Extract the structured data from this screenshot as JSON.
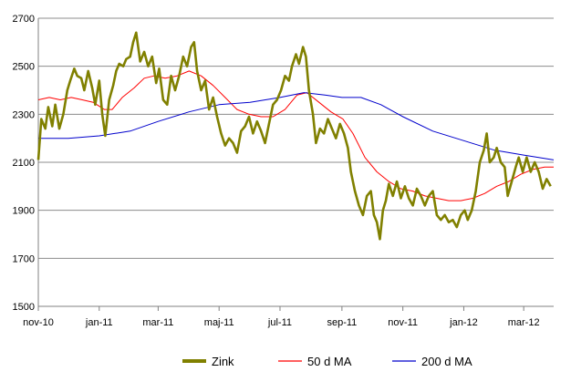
{
  "chart_data": {
    "type": "line",
    "title": "",
    "xlabel": "",
    "ylabel": "",
    "ylim": [
      1500,
      2700
    ],
    "yticks": [
      "1500",
      "1700",
      "1900",
      "2100",
      "2300",
      "2500",
      "2700"
    ],
    "xlim": [
      "2010-11-01",
      "2012-03-31"
    ],
    "xticks": [
      {
        "date": "2010-11-01",
        "label": "nov-10"
      },
      {
        "date": "2011-01-01",
        "label": "jan-11"
      },
      {
        "date": "2011-03-01",
        "label": "mar-11"
      },
      {
        "date": "2011-05-01",
        "label": "maj-11"
      },
      {
        "date": "2011-07-01",
        "label": "jul-11"
      },
      {
        "date": "2011-09-01",
        "label": "sep-11"
      },
      {
        "date": "2011-11-01",
        "label": "nov-11"
      },
      {
        "date": "2012-01-01",
        "label": "jan-12"
      },
      {
        "date": "2012-03-01",
        "label": "mar-12"
      }
    ],
    "grid": true,
    "legend_position": "bottom",
    "series": [
      {
        "name": "Zink",
        "color": "#808000",
        "points": [
          [
            "2010-11-01",
            2110
          ],
          [
            "2010-11-04",
            2280
          ],
          [
            "2010-11-08",
            2240
          ],
          [
            "2010-11-11",
            2330
          ],
          [
            "2010-11-15",
            2250
          ],
          [
            "2010-11-18",
            2340
          ],
          [
            "2010-11-22",
            2240
          ],
          [
            "2010-11-26",
            2300
          ],
          [
            "2010-11-30",
            2400
          ],
          [
            "2010-12-03",
            2440
          ],
          [
            "2010-12-07",
            2490
          ],
          [
            "2010-12-10",
            2460
          ],
          [
            "2010-12-14",
            2450
          ],
          [
            "2010-12-17",
            2400
          ],
          [
            "2010-12-21",
            2480
          ],
          [
            "2010-12-25",
            2410
          ],
          [
            "2010-12-28",
            2340
          ],
          [
            "2011-01-01",
            2440
          ],
          [
            "2011-01-04",
            2300
          ],
          [
            "2011-01-07",
            2210
          ],
          [
            "2011-01-11",
            2360
          ],
          [
            "2011-01-15",
            2420
          ],
          [
            "2011-01-18",
            2480
          ],
          [
            "2011-01-21",
            2510
          ],
          [
            "2011-01-25",
            2500
          ],
          [
            "2011-01-28",
            2530
          ],
          [
            "2011-02-01",
            2540
          ],
          [
            "2011-02-04",
            2600
          ],
          [
            "2011-02-07",
            2640
          ],
          [
            "2011-02-11",
            2520
          ],
          [
            "2011-02-15",
            2560
          ],
          [
            "2011-02-19",
            2500
          ],
          [
            "2011-02-23",
            2540
          ],
          [
            "2011-02-27",
            2430
          ],
          [
            "2011-03-02",
            2490
          ],
          [
            "2011-03-06",
            2360
          ],
          [
            "2011-03-10",
            2340
          ],
          [
            "2011-03-14",
            2460
          ],
          [
            "2011-03-18",
            2400
          ],
          [
            "2011-03-22",
            2460
          ],
          [
            "2011-03-26",
            2540
          ],
          [
            "2011-03-30",
            2500
          ],
          [
            "2011-04-03",
            2580
          ],
          [
            "2011-04-06",
            2600
          ],
          [
            "2011-04-09",
            2480
          ],
          [
            "2011-04-13",
            2400
          ],
          [
            "2011-04-17",
            2440
          ],
          [
            "2011-04-21",
            2320
          ],
          [
            "2011-04-25",
            2370
          ],
          [
            "2011-04-29",
            2290
          ],
          [
            "2011-05-03",
            2220
          ],
          [
            "2011-05-07",
            2170
          ],
          [
            "2011-05-11",
            2200
          ],
          [
            "2011-05-15",
            2180
          ],
          [
            "2011-05-19",
            2140
          ],
          [
            "2011-05-23",
            2230
          ],
          [
            "2011-05-27",
            2250
          ],
          [
            "2011-05-31",
            2290
          ],
          [
            "2011-06-04",
            2220
          ],
          [
            "2011-06-08",
            2270
          ],
          [
            "2011-06-12",
            2230
          ],
          [
            "2011-06-16",
            2180
          ],
          [
            "2011-06-20",
            2260
          ],
          [
            "2011-06-24",
            2340
          ],
          [
            "2011-06-28",
            2360
          ],
          [
            "2011-07-02",
            2400
          ],
          [
            "2011-07-06",
            2460
          ],
          [
            "2011-07-10",
            2440
          ],
          [
            "2011-07-13",
            2500
          ],
          [
            "2011-07-17",
            2550
          ],
          [
            "2011-07-20",
            2510
          ],
          [
            "2011-07-24",
            2580
          ],
          [
            "2011-07-27",
            2540
          ],
          [
            "2011-07-30",
            2400
          ],
          [
            "2011-08-03",
            2300
          ],
          [
            "2011-08-06",
            2180
          ],
          [
            "2011-08-10",
            2240
          ],
          [
            "2011-08-14",
            2220
          ],
          [
            "2011-08-18",
            2280
          ],
          [
            "2011-08-22",
            2240
          ],
          [
            "2011-08-26",
            2200
          ],
          [
            "2011-08-30",
            2260
          ],
          [
            "2011-09-03",
            2220
          ],
          [
            "2011-09-07",
            2160
          ],
          [
            "2011-09-10",
            2060
          ],
          [
            "2011-09-14",
            1980
          ],
          [
            "2011-09-18",
            1920
          ],
          [
            "2011-09-22",
            1880
          ],
          [
            "2011-09-26",
            1960
          ],
          [
            "2011-09-30",
            1980
          ],
          [
            "2011-10-03",
            1880
          ],
          [
            "2011-10-06",
            1850
          ],
          [
            "2011-10-09",
            1780
          ],
          [
            "2011-10-12",
            1900
          ],
          [
            "2011-10-15",
            1940
          ],
          [
            "2011-10-18",
            2010
          ],
          [
            "2011-10-22",
            1960
          ],
          [
            "2011-10-26",
            2020
          ],
          [
            "2011-10-30",
            1950
          ],
          [
            "2011-11-03",
            2000
          ],
          [
            "2011-11-07",
            1950
          ],
          [
            "2011-11-11",
            1920
          ],
          [
            "2011-11-15",
            1990
          ],
          [
            "2011-11-19",
            1960
          ],
          [
            "2011-11-23",
            1920
          ],
          [
            "2011-11-27",
            1960
          ],
          [
            "2011-12-01",
            1980
          ],
          [
            "2011-12-05",
            1880
          ],
          [
            "2011-12-09",
            1860
          ],
          [
            "2011-12-13",
            1880
          ],
          [
            "2011-12-17",
            1850
          ],
          [
            "2011-12-21",
            1860
          ],
          [
            "2011-12-25",
            1830
          ],
          [
            "2011-12-29",
            1880
          ],
          [
            "2012-01-02",
            1900
          ],
          [
            "2012-01-05",
            1860
          ],
          [
            "2012-01-09",
            1900
          ],
          [
            "2012-01-13",
            1980
          ],
          [
            "2012-01-17",
            2100
          ],
          [
            "2012-01-21",
            2150
          ],
          [
            "2012-01-24",
            2220
          ],
          [
            "2012-01-27",
            2100
          ],
          [
            "2012-01-31",
            2120
          ],
          [
            "2012-02-03",
            2160
          ],
          [
            "2012-02-07",
            2100
          ],
          [
            "2012-02-11",
            2080
          ],
          [
            "2012-02-14",
            1960
          ],
          [
            "2012-02-18",
            2020
          ],
          [
            "2012-02-22",
            2080
          ],
          [
            "2012-02-25",
            2120
          ],
          [
            "2012-02-29",
            2060
          ],
          [
            "2012-03-04",
            2120
          ],
          [
            "2012-03-08",
            2060
          ],
          [
            "2012-03-12",
            2100
          ],
          [
            "2012-03-16",
            2060
          ],
          [
            "2012-03-20",
            1990
          ],
          [
            "2012-03-24",
            2030
          ],
          [
            "2012-03-28",
            2000
          ]
        ]
      },
      {
        "name": "50 d MA",
        "color": "#ff0000",
        "points": [
          [
            "2010-11-01",
            2360
          ],
          [
            "2010-11-12",
            2370
          ],
          [
            "2010-11-23",
            2360
          ],
          [
            "2010-12-04",
            2370
          ],
          [
            "2010-12-15",
            2360
          ],
          [
            "2010-12-26",
            2350
          ],
          [
            "2011-01-06",
            2320
          ],
          [
            "2011-01-14",
            2320
          ],
          [
            "2011-01-24",
            2370
          ],
          [
            "2011-02-05",
            2410
          ],
          [
            "2011-02-15",
            2450
          ],
          [
            "2011-02-25",
            2460
          ],
          [
            "2011-03-08",
            2450
          ],
          [
            "2011-03-20",
            2460
          ],
          [
            "2011-04-01",
            2480
          ],
          [
            "2011-04-13",
            2460
          ],
          [
            "2011-04-25",
            2420
          ],
          [
            "2011-05-07",
            2370
          ],
          [
            "2011-05-19",
            2320
          ],
          [
            "2011-05-31",
            2300
          ],
          [
            "2011-06-12",
            2290
          ],
          [
            "2011-06-24",
            2290
          ],
          [
            "2011-07-06",
            2320
          ],
          [
            "2011-07-18",
            2380
          ],
          [
            "2011-07-28",
            2390
          ],
          [
            "2011-08-09",
            2350
          ],
          [
            "2011-08-21",
            2310
          ],
          [
            "2011-09-02",
            2280
          ],
          [
            "2011-09-12",
            2220
          ],
          [
            "2011-09-24",
            2120
          ],
          [
            "2011-10-06",
            2060
          ],
          [
            "2011-10-18",
            2020
          ],
          [
            "2011-10-30",
            1990
          ],
          [
            "2011-11-11",
            1980
          ],
          [
            "2011-11-23",
            1960
          ],
          [
            "2011-12-05",
            1950
          ],
          [
            "2011-12-17",
            1940
          ],
          [
            "2011-12-29",
            1940
          ],
          [
            "2012-01-10",
            1950
          ],
          [
            "2012-01-22",
            1970
          ],
          [
            "2012-02-03",
            2000
          ],
          [
            "2012-02-15",
            2020
          ],
          [
            "2012-02-27",
            2050
          ],
          [
            "2012-03-10",
            2070
          ],
          [
            "2012-03-22",
            2080
          ],
          [
            "2012-03-31",
            2080
          ]
        ]
      },
      {
        "name": "200 d MA",
        "color": "#0000cc",
        "points": [
          [
            "2010-11-01",
            2200
          ],
          [
            "2010-12-01",
            2200
          ],
          [
            "2011-01-01",
            2210
          ],
          [
            "2011-02-01",
            2230
          ],
          [
            "2011-03-01",
            2270
          ],
          [
            "2011-04-01",
            2310
          ],
          [
            "2011-05-01",
            2340
          ],
          [
            "2011-06-01",
            2350
          ],
          [
            "2011-07-01",
            2370
          ],
          [
            "2011-07-25",
            2390
          ],
          [
            "2011-08-15",
            2380
          ],
          [
            "2011-09-01",
            2370
          ],
          [
            "2011-09-20",
            2370
          ],
          [
            "2011-10-10",
            2340
          ],
          [
            "2011-11-01",
            2290
          ],
          [
            "2011-12-01",
            2230
          ],
          [
            "2012-01-01",
            2190
          ],
          [
            "2012-02-01",
            2150
          ],
          [
            "2012-03-01",
            2130
          ],
          [
            "2012-03-31",
            2110
          ]
        ]
      }
    ]
  }
}
